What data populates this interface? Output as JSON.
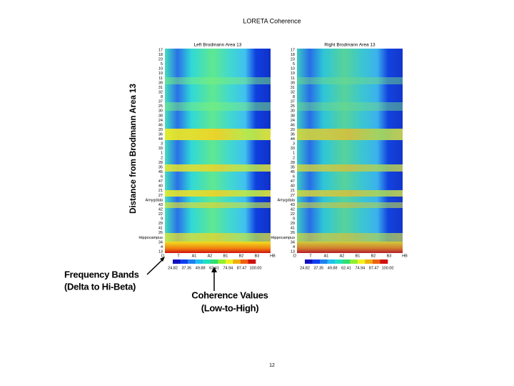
{
  "title": "LORETA Coherence",
  "y_axis_label": "Distance from Brodmann Area 13",
  "panels": [
    {
      "title": "Left Brodmann Area 13",
      "row_labels": [
        "17",
        "18",
        "23",
        "5",
        "10",
        "19",
        "11",
        "39",
        "31",
        "32",
        "8",
        "37",
        "25",
        "30",
        "38",
        "24",
        "46",
        "20",
        "36",
        "44",
        "3",
        "33",
        "1",
        "2",
        "28",
        "35",
        "45",
        "6",
        "47",
        "40",
        "21",
        "27",
        "Amygdala",
        "43",
        "42",
        "22",
        "9",
        "29",
        "41",
        "26",
        "Hippocampus",
        "34",
        "4",
        "13"
      ],
      "column_labels": [
        "D",
        "T",
        "A1",
        "A2",
        "B1",
        "B2",
        "B3",
        "HB"
      ],
      "scale_labels": [
        "24.82",
        "37.35",
        "49.88",
        "62.41",
        "74.94",
        "87.47",
        "100.00"
      ]
    },
    {
      "title": "Right Brodmann Area 13",
      "row_labels": [
        "17",
        "18",
        "23",
        "5",
        "10",
        "19",
        "11",
        "39",
        "31",
        "32",
        "8",
        "37",
        "25",
        "30",
        "38",
        "24",
        "46",
        "20",
        "36",
        "44",
        "3",
        "33",
        "1",
        "2",
        "28",
        "35",
        "45",
        "6",
        "47",
        "40",
        "21",
        "27",
        "Amygdala",
        "43",
        "42",
        "22",
        "9",
        "29",
        "41",
        "26",
        "Hippocampus",
        "34",
        "4",
        "13"
      ],
      "column_labels": [
        "D",
        "T",
        "A1",
        "A2",
        "B1",
        "B2",
        "B3",
        "HB"
      ],
      "scale_labels": [
        "24.82",
        "37.35",
        "49.88",
        "62.41",
        "74.94",
        "87.47",
        "100.00"
      ]
    }
  ],
  "annotations": [
    {
      "lines": [
        "Frequency Bands",
        "(Delta to Hi-Beta)"
      ]
    },
    {
      "lines": [
        "Coherence Values",
        "(Low-to-High)"
      ]
    }
  ],
  "page_number": "12"
}
